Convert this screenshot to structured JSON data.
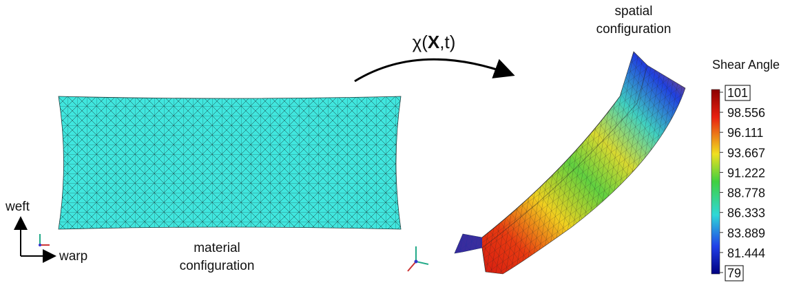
{
  "material": {
    "label_line1": "material",
    "label_line2": "configuration",
    "weft": "weft",
    "warp": "warp"
  },
  "mapping": {
    "prefix": "χ(",
    "variable": "X",
    "suffix": ",t)"
  },
  "spatial": {
    "label_line1": "spatial",
    "label_line2": "configuration"
  },
  "colorbar": {
    "title": "Shear Angle",
    "ticks": [
      101,
      98.556,
      96.111,
      93.667,
      91.222,
      88.778,
      86.333,
      83.889,
      81.444,
      79
    ]
  }
}
